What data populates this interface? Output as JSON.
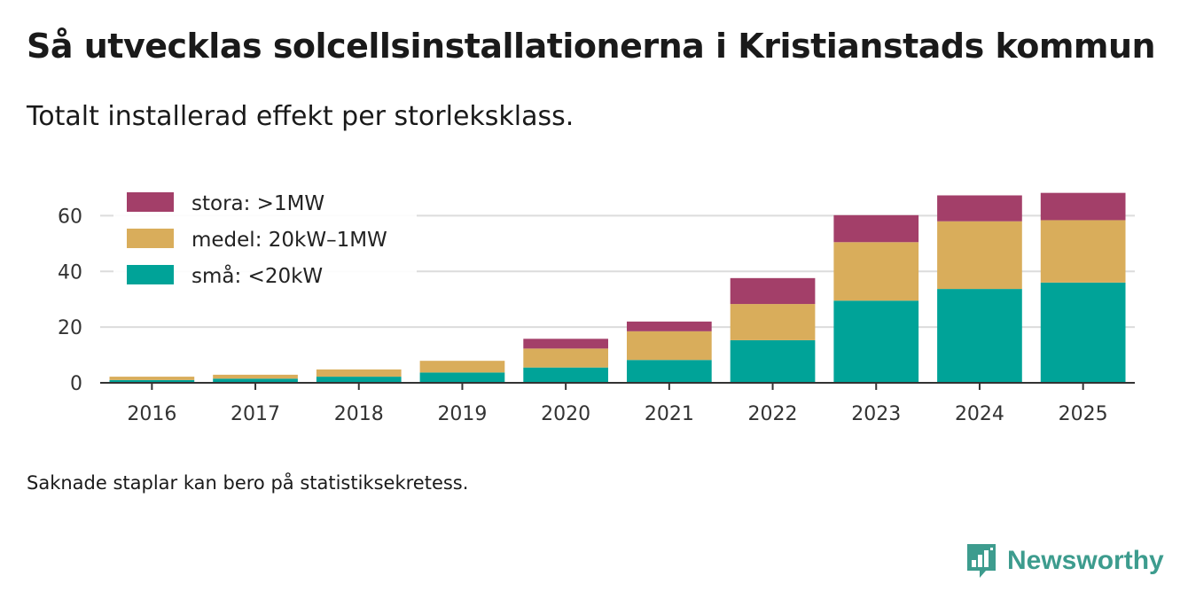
{
  "title": "Så utvecklas solcellsinstallationerna i Kristianstads kommun",
  "subtitle": "Totalt installerad effekt per storleksklass.",
  "footnote": "Saknade staplar kan bero på statistiksekretess.",
  "brand": {
    "name": "Newsworthy",
    "color": "#3d9c8e"
  },
  "chart_data": {
    "type": "bar",
    "stacked": true,
    "title": "Så utvecklas solcellsinstallationerna i Kristianstads kommun",
    "subtitle": "Totalt installerad effekt per storleksklass.",
    "xlabel": "",
    "ylabel": "",
    "ylim": [
      0,
      70
    ],
    "yticks": [
      0,
      20,
      40,
      60
    ],
    "grid": true,
    "legend_position": "top-left",
    "categories": [
      "2016",
      "2017",
      "2018",
      "2019",
      "2020",
      "2021",
      "2022",
      "2023",
      "2024",
      "2025"
    ],
    "series": [
      {
        "name": "små: <20kW",
        "color": "#00a398",
        "values": [
          1.0,
          1.5,
          2.2,
          3.7,
          5.5,
          8.2,
          15.3,
          29.5,
          33.7,
          36.0
        ]
      },
      {
        "name": "medel: 20kW–1MW",
        "color": "#d9ad5b",
        "values": [
          1.2,
          1.4,
          2.6,
          4.2,
          6.8,
          10.3,
          13.0,
          21.0,
          24.3,
          22.4
        ]
      },
      {
        "name": "stora: >1MW",
        "color": "#a33f69",
        "values": [
          0,
          0,
          0,
          0,
          3.5,
          3.5,
          9.3,
          9.7,
          9.3,
          9.8
        ]
      }
    ],
    "legend_order": [
      "stora: >1MW",
      "medel: 20kW–1MW",
      "små: <20kW"
    ]
  }
}
